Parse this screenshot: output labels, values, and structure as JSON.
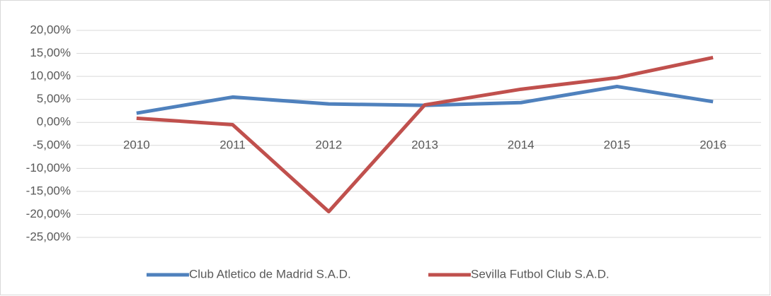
{
  "chart_data": {
    "type": "line",
    "categories": [
      "2010",
      "2011",
      "2012",
      "2013",
      "2014",
      "2015",
      "2016"
    ],
    "series": [
      {
        "name": "Club Atletico de Madrid S.A.D.",
        "color": "#4f81bd",
        "values": [
          2.0,
          5.5,
          4.0,
          3.7,
          4.3,
          7.8,
          4.5
        ]
      },
      {
        "name": "Sevilla Futbol Club S.A.D.",
        "color": "#c0504d",
        "values": [
          0.9,
          -0.5,
          -19.4,
          3.8,
          7.2,
          9.7,
          14.1
        ]
      }
    ],
    "ylim": [
      -25,
      20
    ],
    "yticks": [
      {
        "value": 20,
        "label": "20,00%"
      },
      {
        "value": 15,
        "label": "15,00%"
      },
      {
        "value": 10,
        "label": "10,00%"
      },
      {
        "value": 5,
        "label": "5,00%"
      },
      {
        "value": 0,
        "label": "0,00%"
      },
      {
        "value": -5,
        "label": "-5,00%"
      },
      {
        "value": -10,
        "label": "-10,00%"
      },
      {
        "value": -15,
        "label": "-15,00%"
      },
      {
        "value": -20,
        "label": "-20,00%"
      },
      {
        "value": -25,
        "label": "-25,00%"
      }
    ],
    "grid": true,
    "legend": "bottom"
  }
}
